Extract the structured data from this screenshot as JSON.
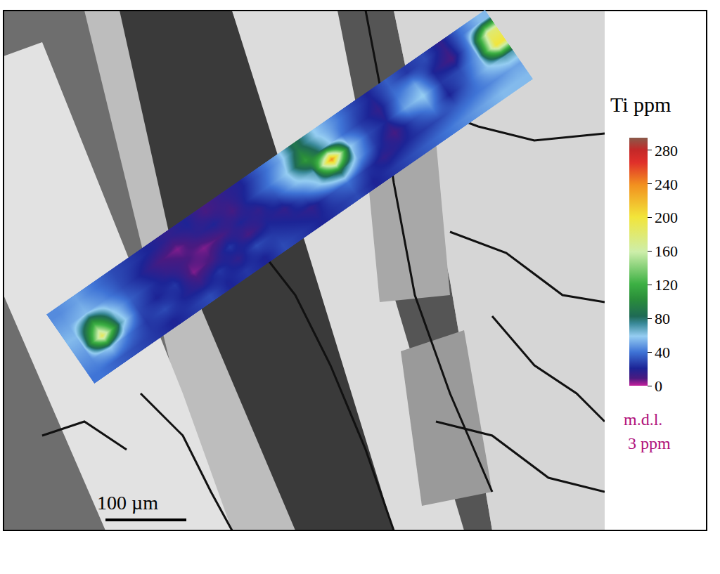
{
  "chart_data": {
    "type": "heatmap",
    "tick_labels": false,
    "z": [
      [
        40,
        35,
        30,
        25,
        20,
        25,
        30,
        20,
        25,
        20,
        30,
        25,
        20,
        25,
        30,
        20,
        25,
        30,
        35,
        40,
        45,
        50,
        55,
        55
      ],
      [
        45,
        60,
        40,
        25,
        30,
        20,
        15,
        25,
        15,
        30,
        25,
        20,
        15,
        30,
        40,
        25,
        15,
        20,
        25,
        30,
        35,
        40,
        45,
        50
      ],
      [
        50,
        190,
        70,
        30,
        20,
        25,
        5,
        10,
        25,
        10,
        20,
        15,
        35,
        60,
        90,
        50,
        25,
        10,
        30,
        45,
        20,
        35,
        55,
        70
      ],
      [
        55,
        120,
        60,
        35,
        25,
        15,
        10,
        5,
        10,
        20,
        15,
        30,
        55,
        70,
        240,
        60,
        30,
        20,
        50,
        60,
        25,
        30,
        50,
        200
      ],
      [
        50,
        55,
        45,
        30,
        20,
        10,
        5,
        15,
        20,
        10,
        25,
        40,
        60,
        110,
        70,
        40,
        25,
        15,
        40,
        50,
        20,
        10,
        45,
        180
      ],
      [
        45,
        50,
        40,
        30,
        25,
        20,
        15,
        20,
        10,
        15,
        20,
        35,
        50,
        90,
        60,
        45,
        30,
        20,
        35,
        25,
        30,
        15,
        40,
        55
      ]
    ],
    "colorbar": {
      "title": "Ti ppm",
      "range": [
        0,
        295
      ],
      "ticks": [
        0,
        40,
        80,
        120,
        160,
        200,
        240,
        280
      ],
      "note": [
        "m.d.l.",
        "3 ppm"
      ]
    },
    "scale_bar": "100 µm"
  }
}
